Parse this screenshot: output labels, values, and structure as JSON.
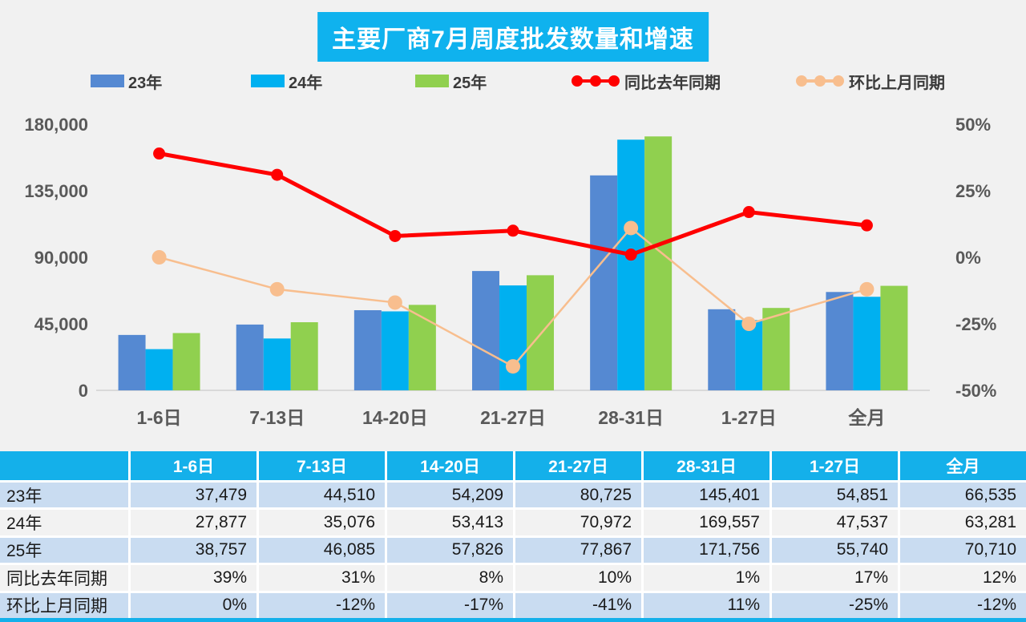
{
  "title": "主要厂商7月周度批发数量和增速",
  "legend": [
    {
      "label": "23年",
      "type": "bar",
      "color": "#5589D2"
    },
    {
      "label": "24年",
      "type": "bar",
      "color": "#00B0F0"
    },
    {
      "label": "25年",
      "type": "bar",
      "color": "#90D04F"
    },
    {
      "label": "同比去年同期",
      "type": "line",
      "color": "#FF0000"
    },
    {
      "label": "环比上月同期",
      "type": "line",
      "color": "#F8BE8E"
    }
  ],
  "chart_data": {
    "type": "combo-bar-line",
    "title": "主要厂商7月周度批发数量和增速",
    "categories": [
      "1-6日",
      "7-13日",
      "14-20日",
      "21-27日",
      "28-31日",
      "1-27日",
      "全月"
    ],
    "series": [
      {
        "name": "23年",
        "type": "bar",
        "axis": "left",
        "color": "#5589D2",
        "values": [
          37479,
          44510,
          54209,
          80725,
          145401,
          54851,
          66535
        ]
      },
      {
        "name": "24年",
        "type": "bar",
        "axis": "left",
        "color": "#00B0F0",
        "values": [
          27877,
          35076,
          53413,
          70972,
          169557,
          47537,
          63281
        ]
      },
      {
        "name": "25年",
        "type": "bar",
        "axis": "left",
        "color": "#90D04F",
        "values": [
          38757,
          46085,
          57826,
          77867,
          171756,
          55740,
          70710
        ]
      },
      {
        "name": "同比去年同期",
        "type": "line",
        "axis": "right",
        "unit": "%",
        "color": "#FF0000",
        "values": [
          39,
          31,
          8,
          10,
          1,
          17,
          12
        ]
      },
      {
        "name": "环比上月同期",
        "type": "line",
        "axis": "right",
        "unit": "%",
        "color": "#F8BE8E",
        "values": [
          0,
          -12,
          -17,
          -41,
          11,
          -25,
          -12
        ]
      }
    ],
    "left_axis": {
      "min": 0,
      "max": 180000,
      "ticks": [
        "180,000",
        "135,000",
        "90,000",
        "45,000",
        "0"
      ]
    },
    "right_axis": {
      "min": -50,
      "max": 50,
      "ticks": [
        "50%",
        "25%",
        "0%",
        "-25%",
        "-50%"
      ]
    },
    "grid": false,
    "legend_position": "top"
  },
  "table": {
    "header": [
      "",
      "1-6日",
      "7-13日",
      "14-20日",
      "21-27日",
      "28-31日",
      "1-27日",
      "全月"
    ],
    "rows": [
      {
        "label": "23年",
        "values": [
          "37,479",
          "44,510",
          "54,209",
          "80,725",
          "145,401",
          "54,851",
          "66,535"
        ]
      },
      {
        "label": "24年",
        "values": [
          "27,877",
          "35,076",
          "53,413",
          "70,972",
          "169,557",
          "47,537",
          "63,281"
        ]
      },
      {
        "label": "25年",
        "values": [
          "38,757",
          "46,085",
          "57,826",
          "77,867",
          "171,756",
          "55,740",
          "70,710"
        ]
      },
      {
        "label": "同比去年同期",
        "values": [
          "39%",
          "31%",
          "8%",
          "10%",
          "1%",
          "17%",
          "12%"
        ]
      },
      {
        "label": "环比上月同期",
        "values": [
          "0%",
          "-12%",
          "-17%",
          "-41%",
          "11%",
          "-25%",
          "-12%"
        ]
      }
    ]
  },
  "colors": {
    "title_bg": "#0FB2EE",
    "table_header_bg": "#14B0EA",
    "row_blue": "#C9DCF1",
    "row_gray": "#F2F2F2",
    "page_bg": "#F1F1F1",
    "axis_text": "#595959",
    "baseline": "#D9D9D9"
  }
}
